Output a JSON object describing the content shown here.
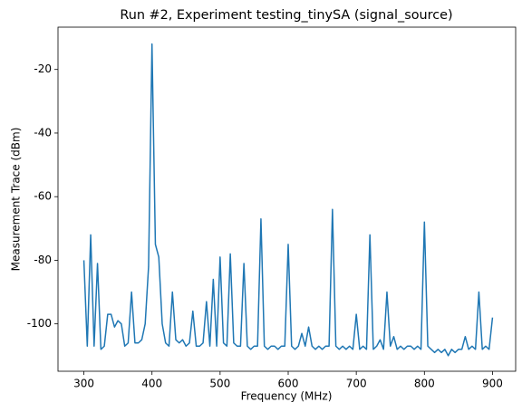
{
  "chart_data": {
    "type": "line",
    "title": "Run #2, Experiment testing_tinySA (signal_source)",
    "x_label": "Frequency (MHz)",
    "y_label": "Measurement Trace (dBm)",
    "xlim": [
      262,
      934
    ],
    "ylim": [
      -114.9,
      -6.7
    ],
    "xticks": [
      300,
      400,
      500,
      600,
      700,
      800,
      900
    ],
    "yticks": [
      -100,
      -80,
      -60,
      -40,
      -20
    ],
    "grid": false,
    "x": [
      300,
      305,
      310,
      315,
      320,
      325,
      330,
      335,
      340,
      345,
      350,
      355,
      360,
      365,
      370,
      375,
      380,
      385,
      390,
      395,
      400,
      405,
      410,
      415,
      420,
      425,
      430,
      435,
      440,
      445,
      450,
      455,
      460,
      465,
      470,
      475,
      480,
      485,
      490,
      495,
      500,
      505,
      510,
      515,
      520,
      525,
      530,
      535,
      540,
      545,
      550,
      555,
      560,
      565,
      570,
      575,
      580,
      585,
      590,
      595,
      600,
      605,
      610,
      615,
      620,
      625,
      630,
      635,
      640,
      645,
      650,
      655,
      660,
      665,
      670,
      675,
      680,
      685,
      690,
      695,
      700,
      705,
      710,
      715,
      720,
      725,
      730,
      735,
      740,
      745,
      750,
      755,
      760,
      765,
      770,
      775,
      780,
      785,
      790,
      795,
      800,
      805,
      810,
      815,
      820,
      825,
      830,
      835,
      840,
      845,
      850,
      855,
      860,
      865,
      870,
      875,
      880,
      885,
      890,
      895,
      900
    ],
    "series": [
      {
        "color": "#1f77b4",
        "values": [
          -80,
          -107,
          -72,
          -107,
          -81,
          -108,
          -107,
          -97,
          -97,
          -101,
          -99,
          -100,
          -107,
          -106,
          -90,
          -106,
          -106,
          -105,
          -100,
          -82,
          -12,
          -75,
          -79,
          -100,
          -106,
          -107,
          -90,
          -105,
          -106,
          -105,
          -107,
          -106,
          -96,
          -107,
          -107,
          -106,
          -93,
          -107,
          -86,
          -107,
          -79,
          -106,
          -107,
          -78,
          -106,
          -107,
          -107,
          -81,
          -107,
          -108,
          -107,
          -107,
          -67,
          -107,
          -108,
          -107,
          -107,
          -108,
          -107,
          -107,
          -75,
          -107,
          -108,
          -107,
          -103,
          -107,
          -101,
          -107,
          -108,
          -107,
          -108,
          -107,
          -107,
          -64,
          -107,
          -108,
          -107,
          -108,
          -107,
          -108,
          -97,
          -108,
          -107,
          -108,
          -72,
          -108,
          -107,
          -105,
          -108,
          -90,
          -107,
          -104,
          -108,
          -107,
          -108,
          -107,
          -107,
          -108,
          -107,
          -108,
          -68,
          -107,
          -108,
          -109,
          -108,
          -109,
          -108,
          -110,
          -108,
          -109,
          -108,
          -108,
          -104,
          -108,
          -107,
          -108,
          -90,
          -108,
          -107,
          -108,
          -98
        ]
      }
    ]
  }
}
